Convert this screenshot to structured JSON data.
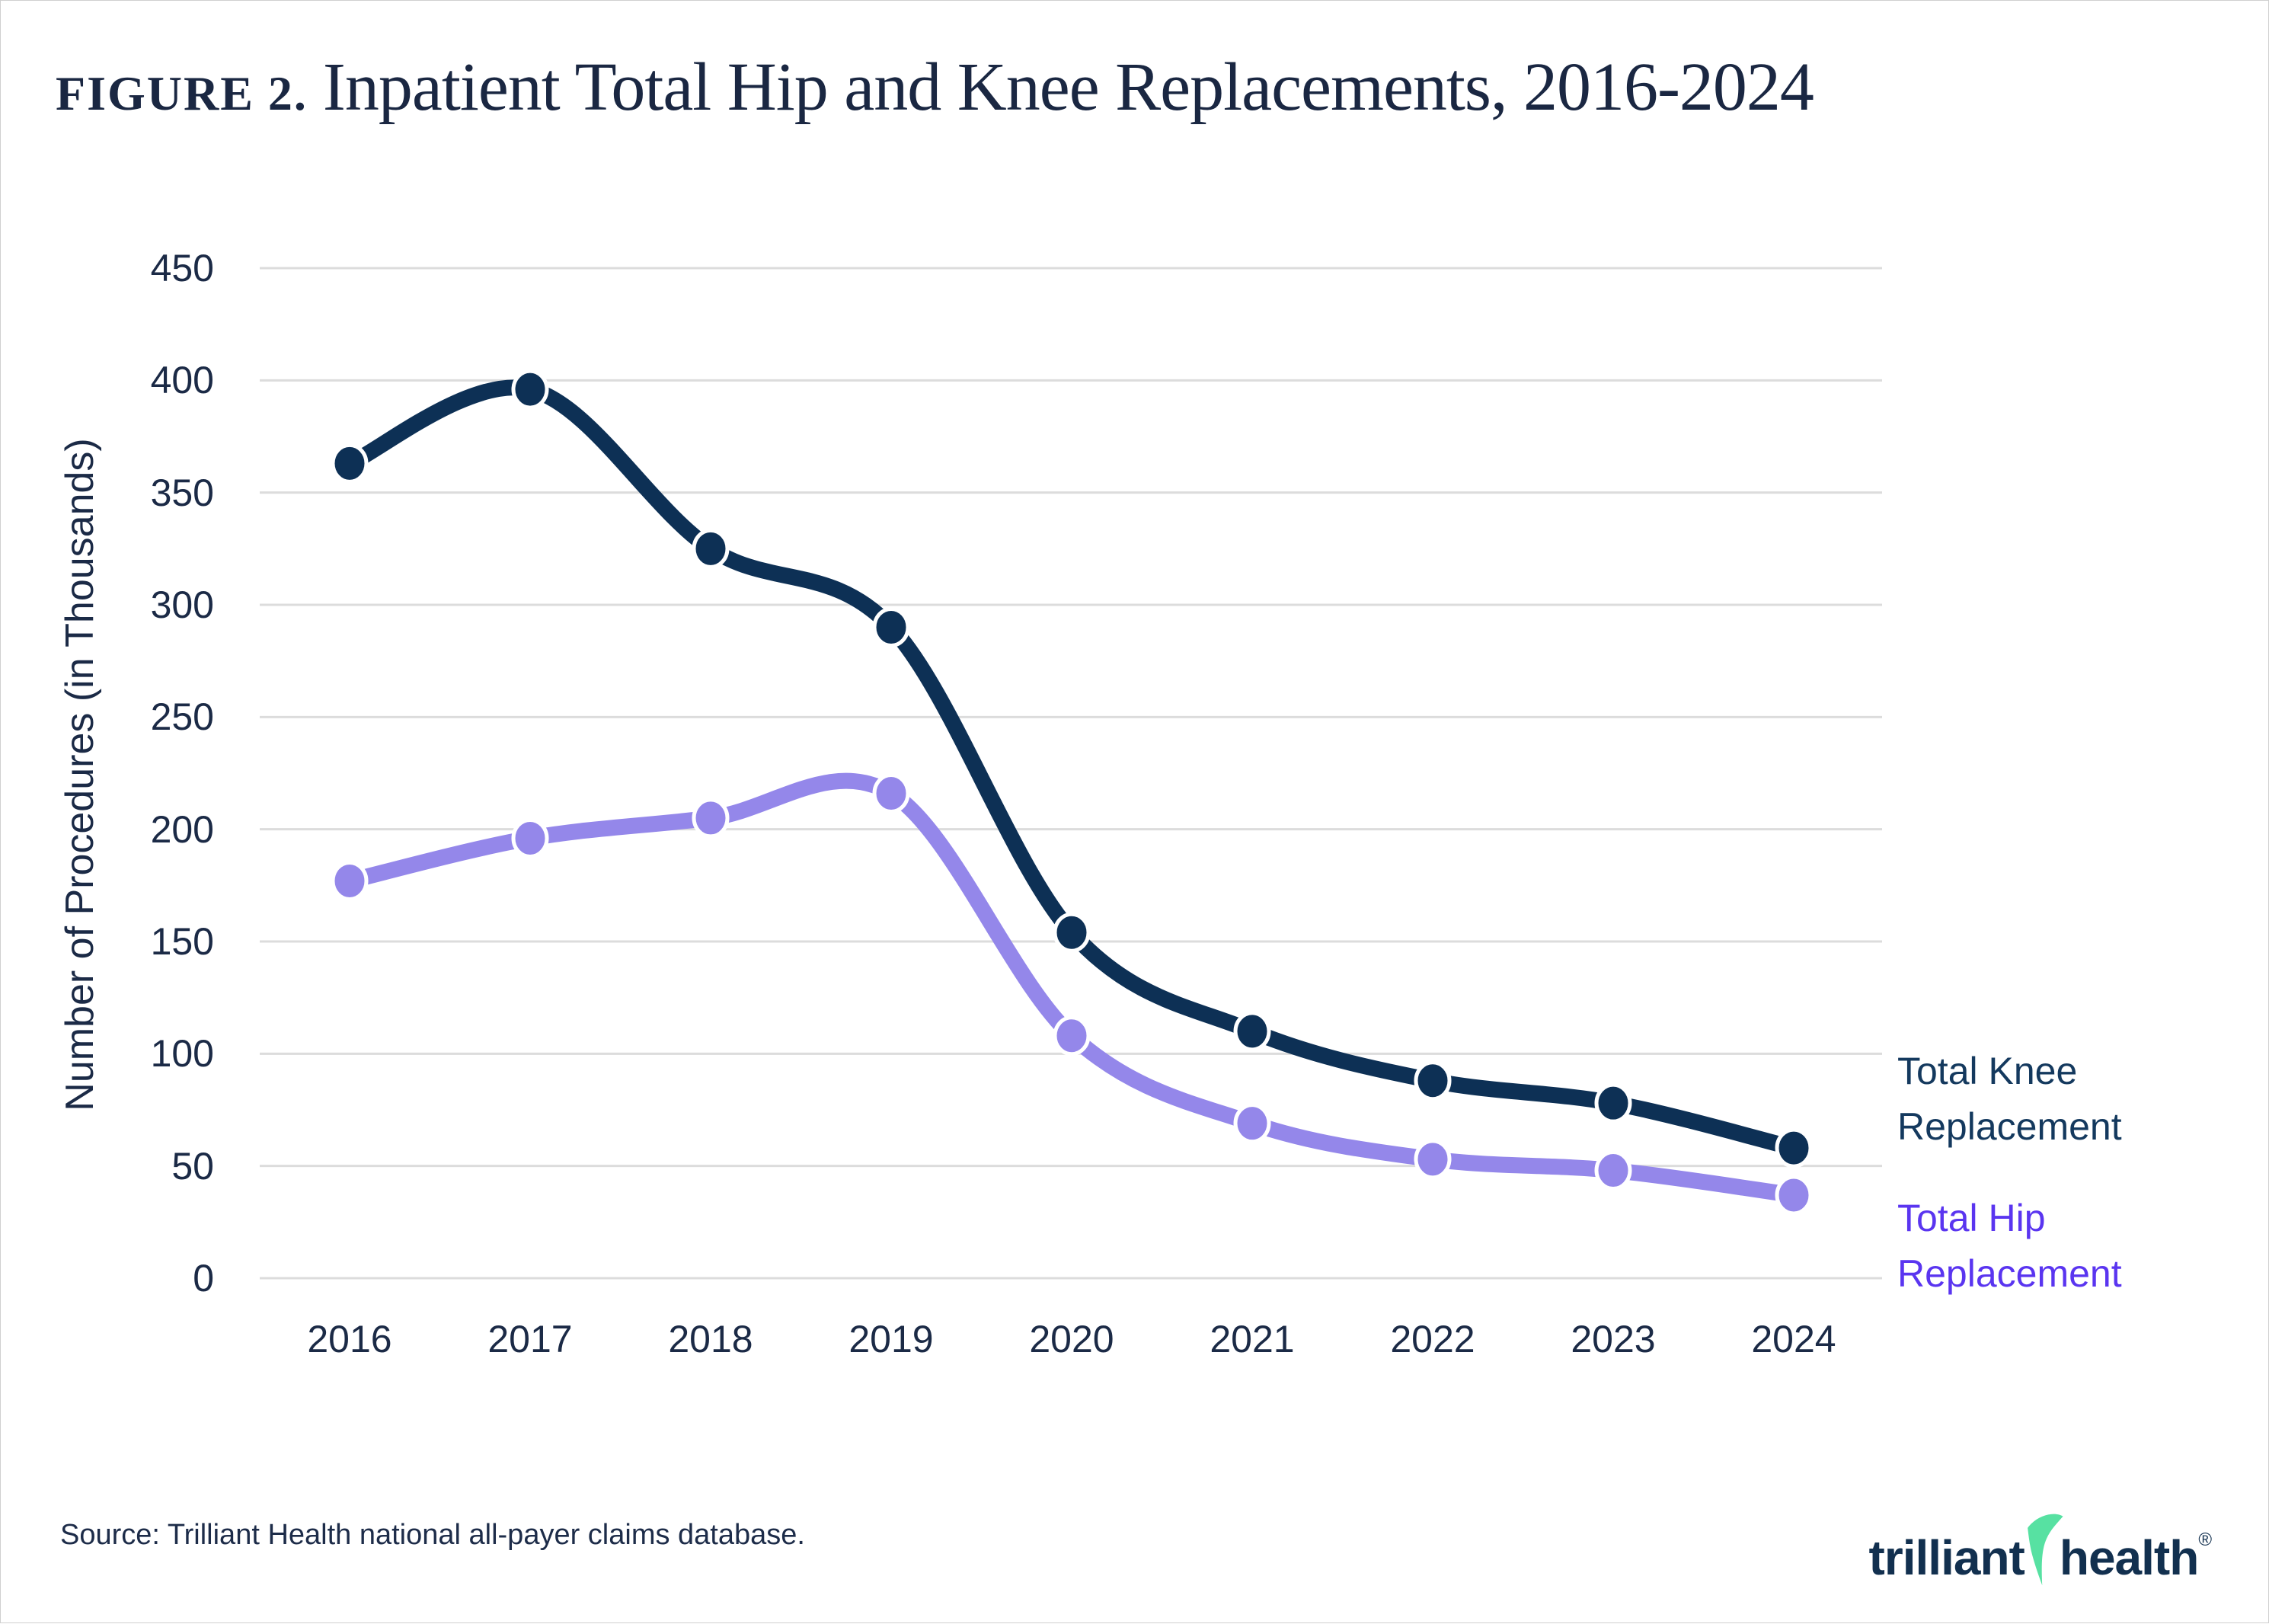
{
  "header": {
    "figure_label": "FIGURE 2.",
    "title": "Inpatient Total Hip and Knee Replacements, 2016-2024"
  },
  "legend": {
    "knee": {
      "line1": "Total Knee",
      "line2": "Replacement",
      "color": "#14395e"
    },
    "hip": {
      "line1": "Total Hip",
      "line2": "Replacement",
      "color": "#5a35f0"
    }
  },
  "footer": {
    "source_text": "Source: Trilliant Health national all-payer claims database.",
    "logo_word1": "trilliant",
    "logo_word2": "health",
    "logo_registered": "®",
    "logo_bolt_icon": "lightning-bolt",
    "logo_navy": "#12304f",
    "logo_green": "#57e1a2"
  },
  "colors": {
    "background": "#ffffff",
    "gridline": "#dcdcdc",
    "text_navy": "#1b2a46",
    "knee_line": "#0d3055",
    "hip_line": "#9487ea",
    "point_outline": "#ffffff"
  },
  "chart_data": {
    "type": "line",
    "title": "Inpatient Total Hip and Knee Replacements, 2016-2024",
    "xlabel": "",
    "ylabel": "Number of Procedures (in Thousands)",
    "x": [
      2016,
      2017,
      2018,
      2019,
      2020,
      2021,
      2022,
      2023,
      2024
    ],
    "yticks": [
      0,
      50,
      100,
      150,
      200,
      250,
      300,
      350,
      400,
      450
    ],
    "ylim": [
      0,
      450
    ],
    "grid": true,
    "legend_position": "right",
    "series": [
      {
        "name": "Total Knee Replacement",
        "color": "#0d3055",
        "values": [
          363,
          396,
          325,
          290,
          154,
          110,
          88,
          78,
          58
        ]
      },
      {
        "name": "Total Hip Replacement",
        "color": "#9487ea",
        "values": [
          177,
          196,
          205,
          216,
          108,
          69,
          53,
          48,
          37
        ]
      }
    ]
  }
}
